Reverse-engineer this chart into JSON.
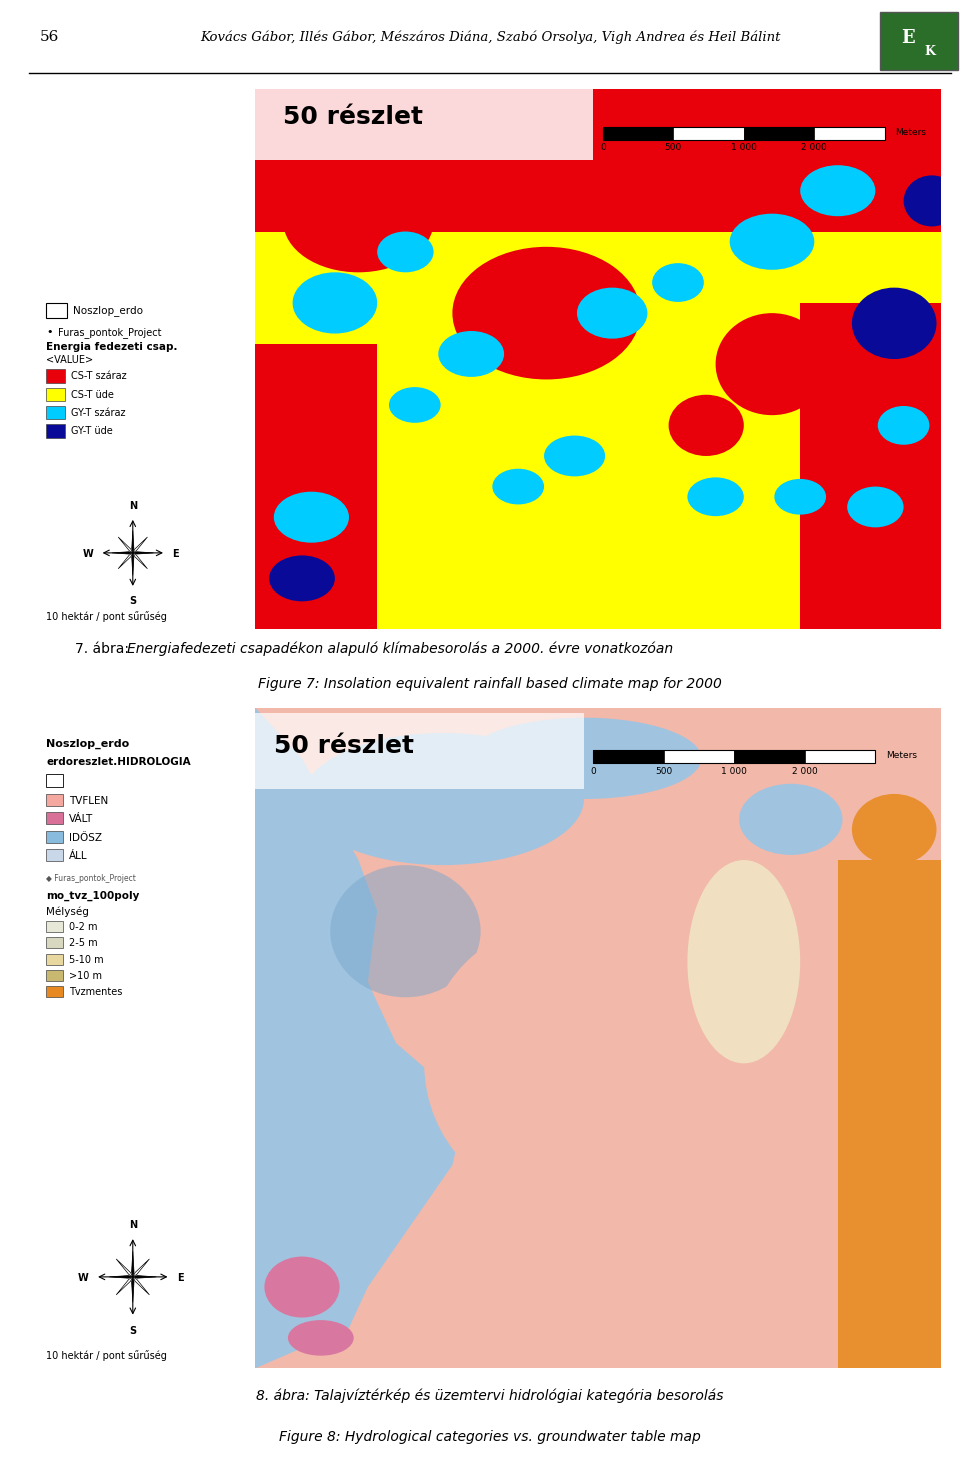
{
  "page_background": "#ffffff",
  "header_number": "56",
  "header_text": "Kovács Gábor, Illés Gábor, Mészáros Diána, Szabó Orsolya, Vigh Andrea és Heil Bálint",
  "fig1_title": "50 részlet",
  "fig1_scalebar_vals": [
    "0",
    "500",
    "1 000",
    "2 000"
  ],
  "fig1_scalebar_text": "Meters",
  "fig1_legend_noszlop": "Noszlop_erdo",
  "fig1_legend_furas": "Furas_pontok_Project",
  "fig1_legend_header": "Energia fedezeti csap.",
  "fig1_legend_value": "<VALUE>",
  "fig1_legend_items": [
    {
      "label": "CS-T száraz",
      "color": "#e8000a"
    },
    {
      "label": "CS-T üde",
      "color": "#ffff00"
    },
    {
      "label": "GY-T száraz",
      "color": "#00ccff"
    },
    {
      "label": "GY-T üde",
      "color": "#0a0a99"
    }
  ],
  "fig1_bottom_text": "10 hektár / pont sűrűség",
  "fig1_caption1": "7. ábra: ",
  "fig1_caption1_italic": "Energiafedezeti csapadékon alapuló klímabesorolás a 2000. évre vonatkozóan",
  "fig1_caption2": "Figure 7: ",
  "fig1_caption2_italic": "Insolation equivalent rainfall based climate map for 2000",
  "fig2_title": "50 részlet",
  "fig2_scalebar_vals": [
    "0",
    "500",
    "1 000",
    "2 000"
  ],
  "fig2_scalebar_text": "Meters",
  "fig2_legend_title1": "Noszlop_erdo",
  "fig2_legend_title2": "erdoreszlet.HIDROLOGIA",
  "fig2_legend_items": [
    {
      "label": "TVFLEN",
      "color": "#f4a8a0"
    },
    {
      "label": "VÁLT",
      "color": "#d87098"
    },
    {
      "label": "IDŐSZ",
      "color": "#88bbdd"
    },
    {
      "label": "ÁLL",
      "color": "#c8d8e8"
    }
  ],
  "fig2_legend_furas": "Furas_pontok_Project",
  "fig2_legend_depth_title": "mo_tvz_100poly",
  "fig2_legend_depth_label": "Mélység",
  "fig2_legend_depth_items": [
    {
      "label": "0-2 m",
      "color": "#e8e8d8"
    },
    {
      "label": "2-5 m",
      "color": "#d8d8c0"
    },
    {
      "label": "5-10 m",
      "color": "#e8d8a0"
    },
    {
      "label": ">10 m",
      "color": "#c8b870"
    },
    {
      "label": "Tvzmentes",
      "color": "#e88820"
    }
  ],
  "fig2_bottom_text": "10 hektár / pont sűrűség",
  "fig2_caption1": "8. ábra: ",
  "fig2_caption1_italic": "Talajvíztérkép és üzemtervi hidrológiai kategória besorolás",
  "fig2_caption2": "Figure 8: ",
  "fig2_caption2_italic": "Hydrological categories vs. groundwater table map",
  "red": "#e8000a",
  "yellow": "#ffff00",
  "cyan": "#00ccff",
  "blue_dark": "#0a0a99",
  "map1_bg": "#ffff00",
  "fig2_pink_light": "#f2b8aa",
  "fig2_blue_light": "#a0c4e0",
  "fig2_blue_med": "#7aa8cc",
  "fig2_cream": "#f0dfc0",
  "fig2_orange": "#e89030"
}
